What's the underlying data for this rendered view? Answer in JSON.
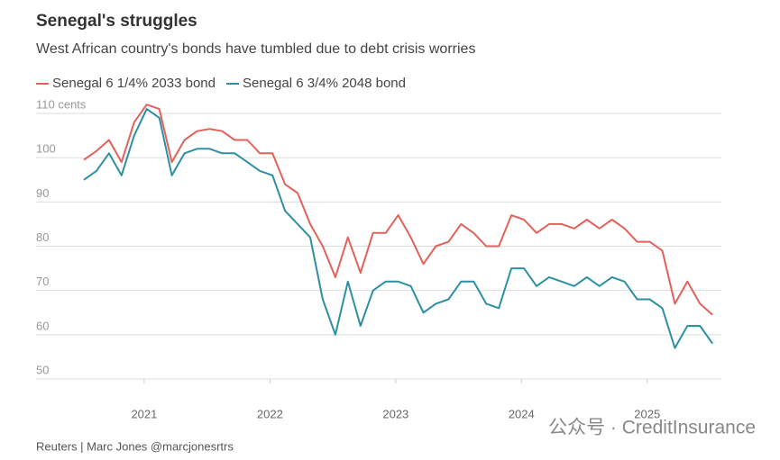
{
  "chart_data": {
    "type": "line",
    "title": "Senegal's struggles",
    "subtitle": "West African country's bonds have tumbled due to debt crisis worries",
    "source": "Reuters | Marc Jones @marcjonesrtrs",
    "watermark": "公众号 · CreditInsurance",
    "x": [
      2020.52,
      2020.62,
      2020.72,
      2020.82,
      2020.92,
      2021.02,
      2021.12,
      2021.22,
      2021.32,
      2021.42,
      2021.52,
      2021.62,
      2021.72,
      2021.82,
      2021.92,
      2022.02,
      2022.12,
      2022.22,
      2022.32,
      2022.42,
      2022.52,
      2022.62,
      2022.72,
      2022.82,
      2022.92,
      2023.02,
      2023.12,
      2023.22,
      2023.32,
      2023.42,
      2023.52,
      2023.62,
      2023.72,
      2023.82,
      2023.92,
      2024.02,
      2024.12,
      2024.22,
      2024.32,
      2024.42,
      2024.52,
      2024.62,
      2024.72,
      2024.82,
      2024.92,
      2025.02,
      2025.12,
      2025.22,
      2025.32,
      2025.42,
      2025.52
    ],
    "series": [
      {
        "name": "Senegal 6 1/4% 2033 bond",
        "color": "#e0625a",
        "values": [
          99.5,
          101.5,
          104,
          99,
          108,
          112,
          111,
          99,
          104,
          106,
          106.5,
          106,
          104,
          104,
          101,
          101,
          94,
          92,
          85,
          80,
          73,
          82,
          74,
          83,
          83,
          87,
          82,
          76,
          80,
          81,
          85,
          83,
          80,
          80,
          87,
          86,
          83,
          85,
          85,
          84,
          86,
          84,
          86,
          84,
          81,
          81,
          79,
          67,
          72,
          67,
          64.5
        ]
      },
      {
        "name": "Senegal 6 3/4% 2048 bond",
        "color": "#2e8fa3",
        "values": [
          95,
          97,
          101,
          96,
          105,
          111,
          109,
          96,
          101,
          102,
          102,
          101,
          101,
          99,
          97,
          96,
          88,
          85,
          82,
          68,
          60,
          72,
          62,
          70,
          72,
          72,
          71,
          65,
          67,
          68,
          72,
          72,
          67,
          66,
          75,
          75,
          71,
          73,
          72,
          71,
          73,
          71,
          73,
          72,
          68,
          68,
          66,
          57,
          62,
          62,
          58
        ]
      }
    ],
    "xlim": [
      2020.14,
      2025.59
    ],
    "xticks": [
      2021,
      2022,
      2023,
      2024,
      2025
    ],
    "ylim": [
      50,
      110
    ],
    "yticks": [
      50,
      60,
      70,
      80,
      90,
      100,
      {
        "value": 110,
        "label": "110 cents"
      }
    ],
    "grid": true
  }
}
